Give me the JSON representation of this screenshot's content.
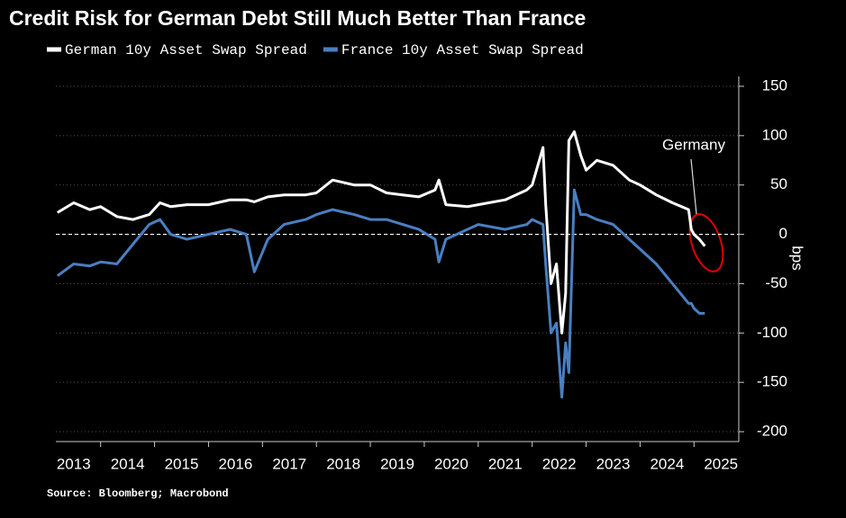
{
  "chart_data": {
    "type": "line",
    "title": "Credit Risk for German Debt Still Much Better Than France",
    "y_label": "bps",
    "source": "Source: Bloomberg; Macrobond",
    "annotation": "Germany",
    "x": [
      2013.2,
      2013.5,
      2013.8,
      2014.0,
      2014.3,
      2014.6,
      2014.9,
      2015.1,
      2015.3,
      2015.6,
      2016.0,
      2016.4,
      2016.7,
      2016.85,
      2017.1,
      2017.4,
      2017.8,
      2018.0,
      2018.3,
      2018.7,
      2019.0,
      2019.3,
      2019.6,
      2019.9,
      2020.2,
      2020.27,
      2020.4,
      2020.8,
      2021.0,
      2021.5,
      2021.9,
      2022.0,
      2022.2,
      2022.25,
      2022.35,
      2022.45,
      2022.55,
      2022.62,
      2022.68,
      2022.78,
      2022.9,
      2023.0,
      2023.2,
      2023.5,
      2023.8,
      2024.0,
      2024.3,
      2024.6,
      2024.9,
      2024.95,
      2025.0,
      2025.1,
      2025.2
    ],
    "series": [
      {
        "name": "German 10y Asset Swap Spread",
        "color": "#ffffff",
        "values": [
          22,
          32,
          25,
          28,
          18,
          15,
          20,
          32,
          28,
          30,
          30,
          35,
          35,
          33,
          38,
          40,
          40,
          42,
          55,
          50,
          50,
          42,
          40,
          38,
          45,
          55,
          30,
          28,
          30,
          35,
          45,
          50,
          88,
          30,
          -50,
          -30,
          -100,
          -60,
          95,
          104,
          80,
          65,
          75,
          70,
          55,
          50,
          40,
          32,
          25,
          5,
          0,
          -5,
          -12
        ]
      },
      {
        "name": "France 10y Asset Swap Spread",
        "color": "#4a7fc1",
        "values": [
          -42,
          -30,
          -32,
          -28,
          -30,
          -10,
          10,
          15,
          0,
          -5,
          0,
          5,
          0,
          -38,
          -5,
          10,
          15,
          20,
          25,
          20,
          15,
          15,
          10,
          5,
          -5,
          -28,
          -5,
          5,
          10,
          5,
          10,
          15,
          10,
          -30,
          -100,
          -90,
          -165,
          -110,
          -140,
          45,
          20,
          20,
          15,
          10,
          -5,
          -15,
          -30,
          -50,
          -70,
          -70,
          -75,
          -80,
          -80
        ]
      }
    ],
    "xlim": [
      2013.17,
      2025.83
    ],
    "xticks": [
      2013,
      2014,
      2015,
      2016,
      2017,
      2018,
      2019,
      2020,
      2021,
      2022,
      2023,
      2024,
      2025
    ],
    "ylim": [
      -210,
      160
    ],
    "yticks": [
      -200,
      -150,
      -100,
      -50,
      0,
      50,
      100,
      150
    ],
    "grid": true,
    "zero_line": true
  }
}
